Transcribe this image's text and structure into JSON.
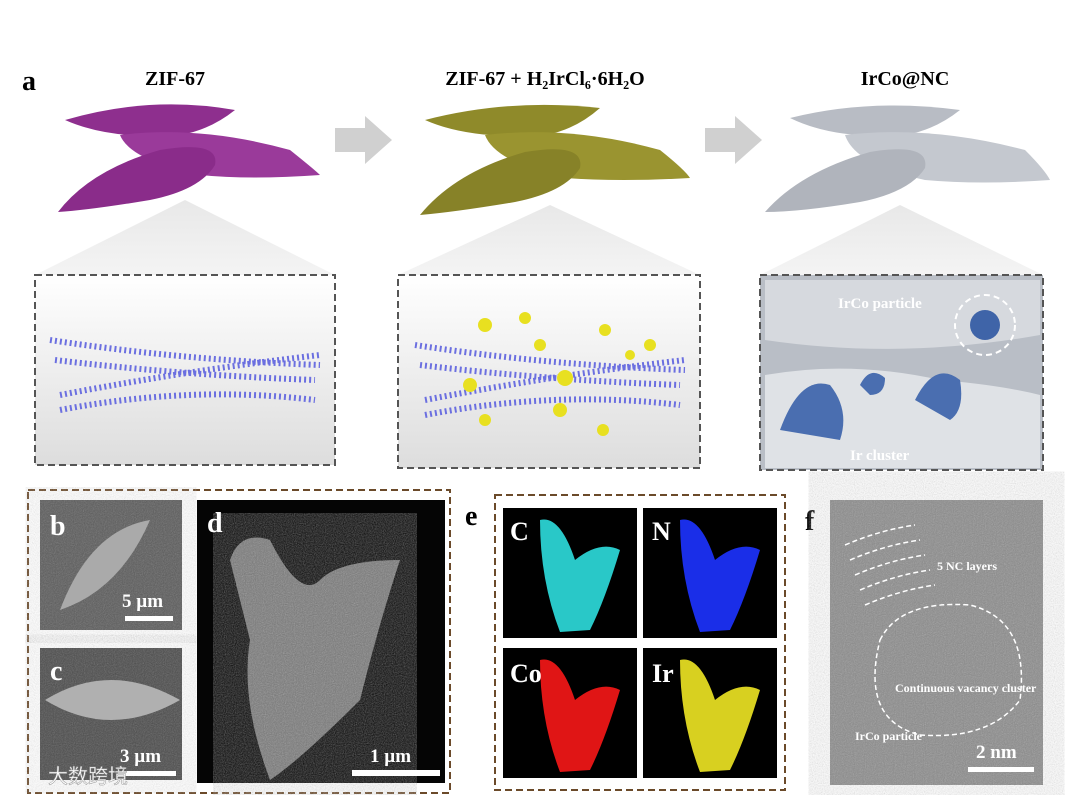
{
  "panel_a": {
    "label": "a",
    "steps": [
      {
        "title": "ZIF-67"
      },
      {
        "title": "ZIF-67 + H₂IrCl₆·6H₂O"
      },
      {
        "title": "IrCo@NC"
      }
    ],
    "annotations": [
      "IrCo particle",
      "Ir cluster"
    ]
  },
  "panel_b": {
    "label": "b",
    "scale_bar": "5 µm"
  },
  "panel_c": {
    "label": "c",
    "scale_bar": "3 µm"
  },
  "panel_d": {
    "label": "d",
    "scale_bar": "1 µm"
  },
  "panel_e": {
    "label": "e",
    "maps": [
      "C",
      "N",
      "Co",
      "Ir"
    ]
  },
  "panel_f": {
    "label": "f",
    "annotations": [
      "5  NC layers",
      "Continuous vacancy cluster",
      "IrCo particle"
    ],
    "scale_bar": "2 nm"
  },
  "watermark": "大数跨境"
}
